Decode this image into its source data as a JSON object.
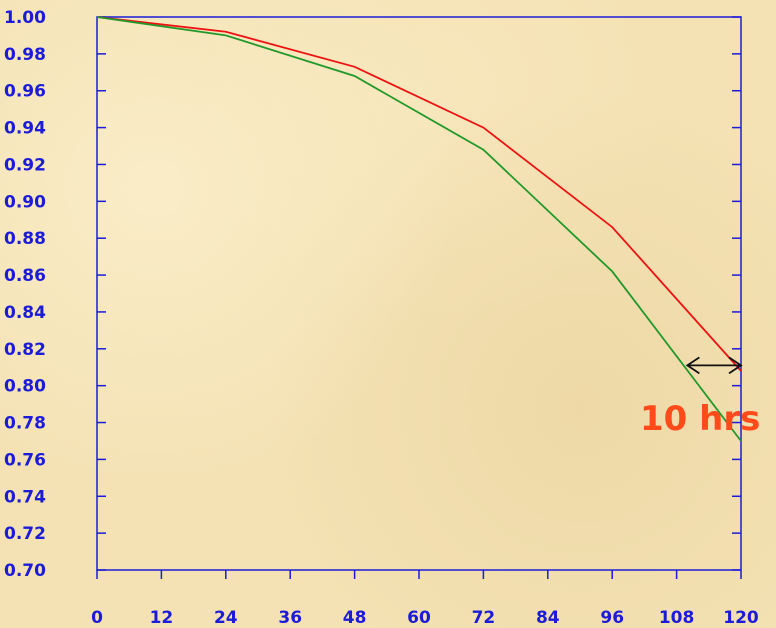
{
  "chart_data": {
    "type": "line",
    "x": [
      0,
      24,
      48,
      72,
      96,
      120
    ],
    "series": [
      {
        "color": "#ee1111",
        "values": [
          1.0,
          0.992,
          0.973,
          0.94,
          0.886,
          0.808
        ]
      },
      {
        "color": "#22992a",
        "values": [
          1.0,
          0.99,
          0.968,
          0.928,
          0.862,
          0.77
        ]
      }
    ],
    "xlim": [
      0,
      120
    ],
    "ylim": [
      0.7,
      1.0
    ],
    "xticks": [
      0,
      12,
      24,
      36,
      48,
      60,
      72,
      84,
      96,
      108,
      120
    ],
    "yticks": [
      0.7,
      0.72,
      0.74,
      0.76,
      0.78,
      0.8,
      0.82,
      0.84,
      0.86,
      0.88,
      0.9,
      0.92,
      0.94,
      0.96,
      0.98,
      1.0
    ],
    "xtick_labels": [
      "0",
      "12",
      "24",
      "36",
      "48",
      "60",
      "72",
      "84",
      "96",
      "108",
      "120"
    ],
    "ytick_labels": [
      "0.70",
      "0.72",
      "0.74",
      "0.76",
      "0.78",
      "0.80",
      "0.82",
      "0.84",
      "0.86",
      "0.88",
      "0.90",
      "0.92",
      "0.94",
      "0.96",
      "0.98",
      "1.00"
    ],
    "grid": false,
    "annotation": {
      "text": "10 hrs",
      "arrow": {
        "x_start": 110,
        "x_end": 120,
        "y": 0.811
      }
    },
    "axis_color": "#1c1cd8",
    "annotation_color": "#ff4a1a"
  }
}
